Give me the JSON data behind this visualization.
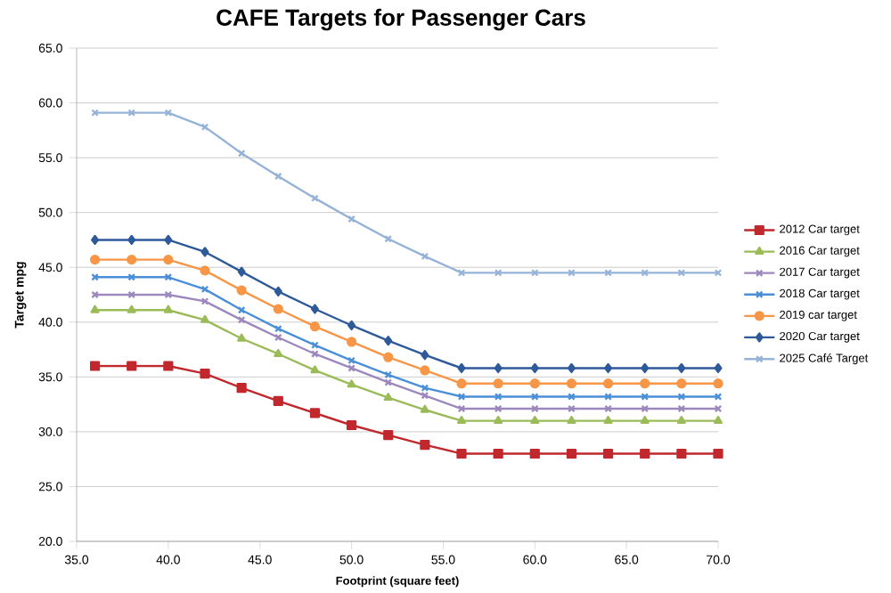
{
  "chart_data": {
    "type": "line",
    "title": "CAFE Targets for Passenger Cars",
    "xlabel": "Footprint (square feet)",
    "ylabel": "Target mpg",
    "x": [
      36,
      38,
      40,
      42,
      44,
      46,
      48,
      50,
      52,
      54,
      56,
      58,
      60,
      62,
      64,
      66,
      68,
      70
    ],
    "series": [
      {
        "name": "2012 Car target",
        "color": "#c0282d",
        "marker": "square",
        "values": [
          36.0,
          36.0,
          36.0,
          35.3,
          34.0,
          32.8,
          31.7,
          30.6,
          29.7,
          28.8,
          28.0,
          28.0,
          28.0,
          28.0,
          28.0,
          28.0,
          28.0,
          28.0
        ]
      },
      {
        "name": "2016 Car target",
        "color": "#9bbb59",
        "marker": "triangle",
        "values": [
          41.1,
          41.1,
          41.1,
          40.2,
          38.5,
          37.1,
          35.6,
          34.3,
          33.1,
          32.0,
          31.0,
          31.0,
          31.0,
          31.0,
          31.0,
          31.0,
          31.0,
          31.0
        ]
      },
      {
        "name": "2017 Car target",
        "color": "#9d88bd",
        "marker": "cross",
        "values": [
          42.5,
          42.5,
          42.5,
          41.9,
          40.2,
          38.6,
          37.1,
          35.8,
          34.5,
          33.3,
          32.1,
          32.1,
          32.1,
          32.1,
          32.1,
          32.1,
          32.1,
          32.1
        ]
      },
      {
        "name": "2018 Car target",
        "color": "#4a8fd8",
        "marker": "cross",
        "values": [
          44.1,
          44.1,
          44.1,
          43.0,
          41.1,
          39.4,
          37.9,
          36.5,
          35.2,
          34.0,
          33.2,
          33.2,
          33.2,
          33.2,
          33.2,
          33.2,
          33.2,
          33.2
        ]
      },
      {
        "name": "2019 car target",
        "color": "#f79646",
        "marker": "circle",
        "values": [
          45.7,
          45.7,
          45.7,
          44.7,
          42.9,
          41.2,
          39.6,
          38.2,
          36.8,
          35.6,
          34.4,
          34.4,
          34.4,
          34.4,
          34.4,
          34.4,
          34.4,
          34.4
        ]
      },
      {
        "name": "2020 Car target",
        "color": "#2e5a9a",
        "marker": "diamond",
        "values": [
          47.5,
          47.5,
          47.5,
          46.4,
          44.6,
          42.8,
          41.2,
          39.7,
          38.3,
          37.0,
          35.8,
          35.8,
          35.8,
          35.8,
          35.8,
          35.8,
          35.8,
          35.8
        ]
      },
      {
        "name": "2025 Café Target",
        "color": "#95b3d7",
        "marker": "cross",
        "values": [
          59.1,
          59.1,
          59.1,
          57.8,
          55.4,
          53.3,
          51.3,
          49.4,
          47.6,
          46.0,
          44.5,
          44.5,
          44.5,
          44.5,
          44.5,
          44.5,
          44.5,
          44.5
        ]
      }
    ],
    "xlim": [
      35,
      70
    ],
    "ylim": [
      20,
      65
    ],
    "xticks": [
      {
        "value": 35,
        "label": "35.0"
      },
      {
        "value": 40,
        "label": "40.0"
      },
      {
        "value": 45,
        "label": "45.0"
      },
      {
        "value": 50,
        "label": "50.0"
      },
      {
        "value": 55,
        "label": "55.0"
      },
      {
        "value": 60,
        "label": "60.0"
      },
      {
        "value": 65,
        "label": "65.0"
      },
      {
        "value": 70,
        "label": "70.0"
      }
    ],
    "yticks": [
      {
        "value": 20,
        "label": "20.0"
      },
      {
        "value": 25,
        "label": "25.0"
      },
      {
        "value": 30,
        "label": "30.0"
      },
      {
        "value": 35,
        "label": "35.0"
      },
      {
        "value": 40,
        "label": "40.0"
      },
      {
        "value": 45,
        "label": "45.0"
      },
      {
        "value": 50,
        "label": "50.0"
      },
      {
        "value": 55,
        "label": "55.0"
      },
      {
        "value": 60,
        "label": "60.0"
      },
      {
        "value": 65,
        "label": "65.0"
      }
    ],
    "grid": "y",
    "legend": "right",
    "line_style": "solid"
  }
}
